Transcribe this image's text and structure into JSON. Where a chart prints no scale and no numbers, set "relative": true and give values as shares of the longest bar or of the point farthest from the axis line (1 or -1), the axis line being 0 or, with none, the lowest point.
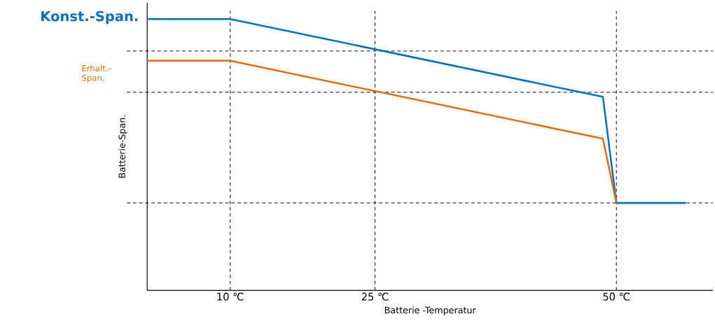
{
  "chart_data": {
    "type": "line",
    "relative": true,
    "xlabel": "Batterie -Temperatur",
    "ylabel": "Batterie-Span.",
    "xlim": [
      1.4,
      60
    ],
    "xticks": [
      {
        "value": 10,
        "label": "10 ℃"
      },
      {
        "value": 25,
        "label": "25 ℃"
      },
      {
        "value": 50,
        "label": "50 ℃"
      }
    ],
    "tick_labels": "x",
    "series": [
      {
        "name": "Konst.-Span.",
        "color": "#0070c0",
        "x": [
          1.4,
          10,
          48.6,
          50,
          57.2
        ],
        "values": [
          1,
          1,
          0.713,
          0.322,
          0.322
        ]
      },
      {
        "name": "Erhalt.-Span.",
        "color": "#e36c09",
        "x": [
          1.4,
          10,
          48.6,
          50
        ],
        "values": [
          0.846,
          0.846,
          0.559,
          0.322
        ]
      }
    ],
    "ref_lines": [
      {
        "axis": "y",
        "value": 0.882,
        "color": "#000000",
        "line_style": "dashed"
      },
      {
        "axis": "y",
        "value": 0.73,
        "color": "#000000",
        "line_style": "dashed"
      },
      {
        "axis": "y",
        "value": 0.322,
        "color": "#000000",
        "line_style": "dashed"
      },
      {
        "axis": "x",
        "value": 10,
        "color": "#000000",
        "line_style": "dashed"
      },
      {
        "axis": "x",
        "value": 25,
        "color": "#000000",
        "line_style": "dashed"
      },
      {
        "axis": "x",
        "value": 50,
        "color": "#000000",
        "line_style": "dashed"
      }
    ],
    "line_style": "solid",
    "marker": "none",
    "grid": false,
    "legend": false
  }
}
